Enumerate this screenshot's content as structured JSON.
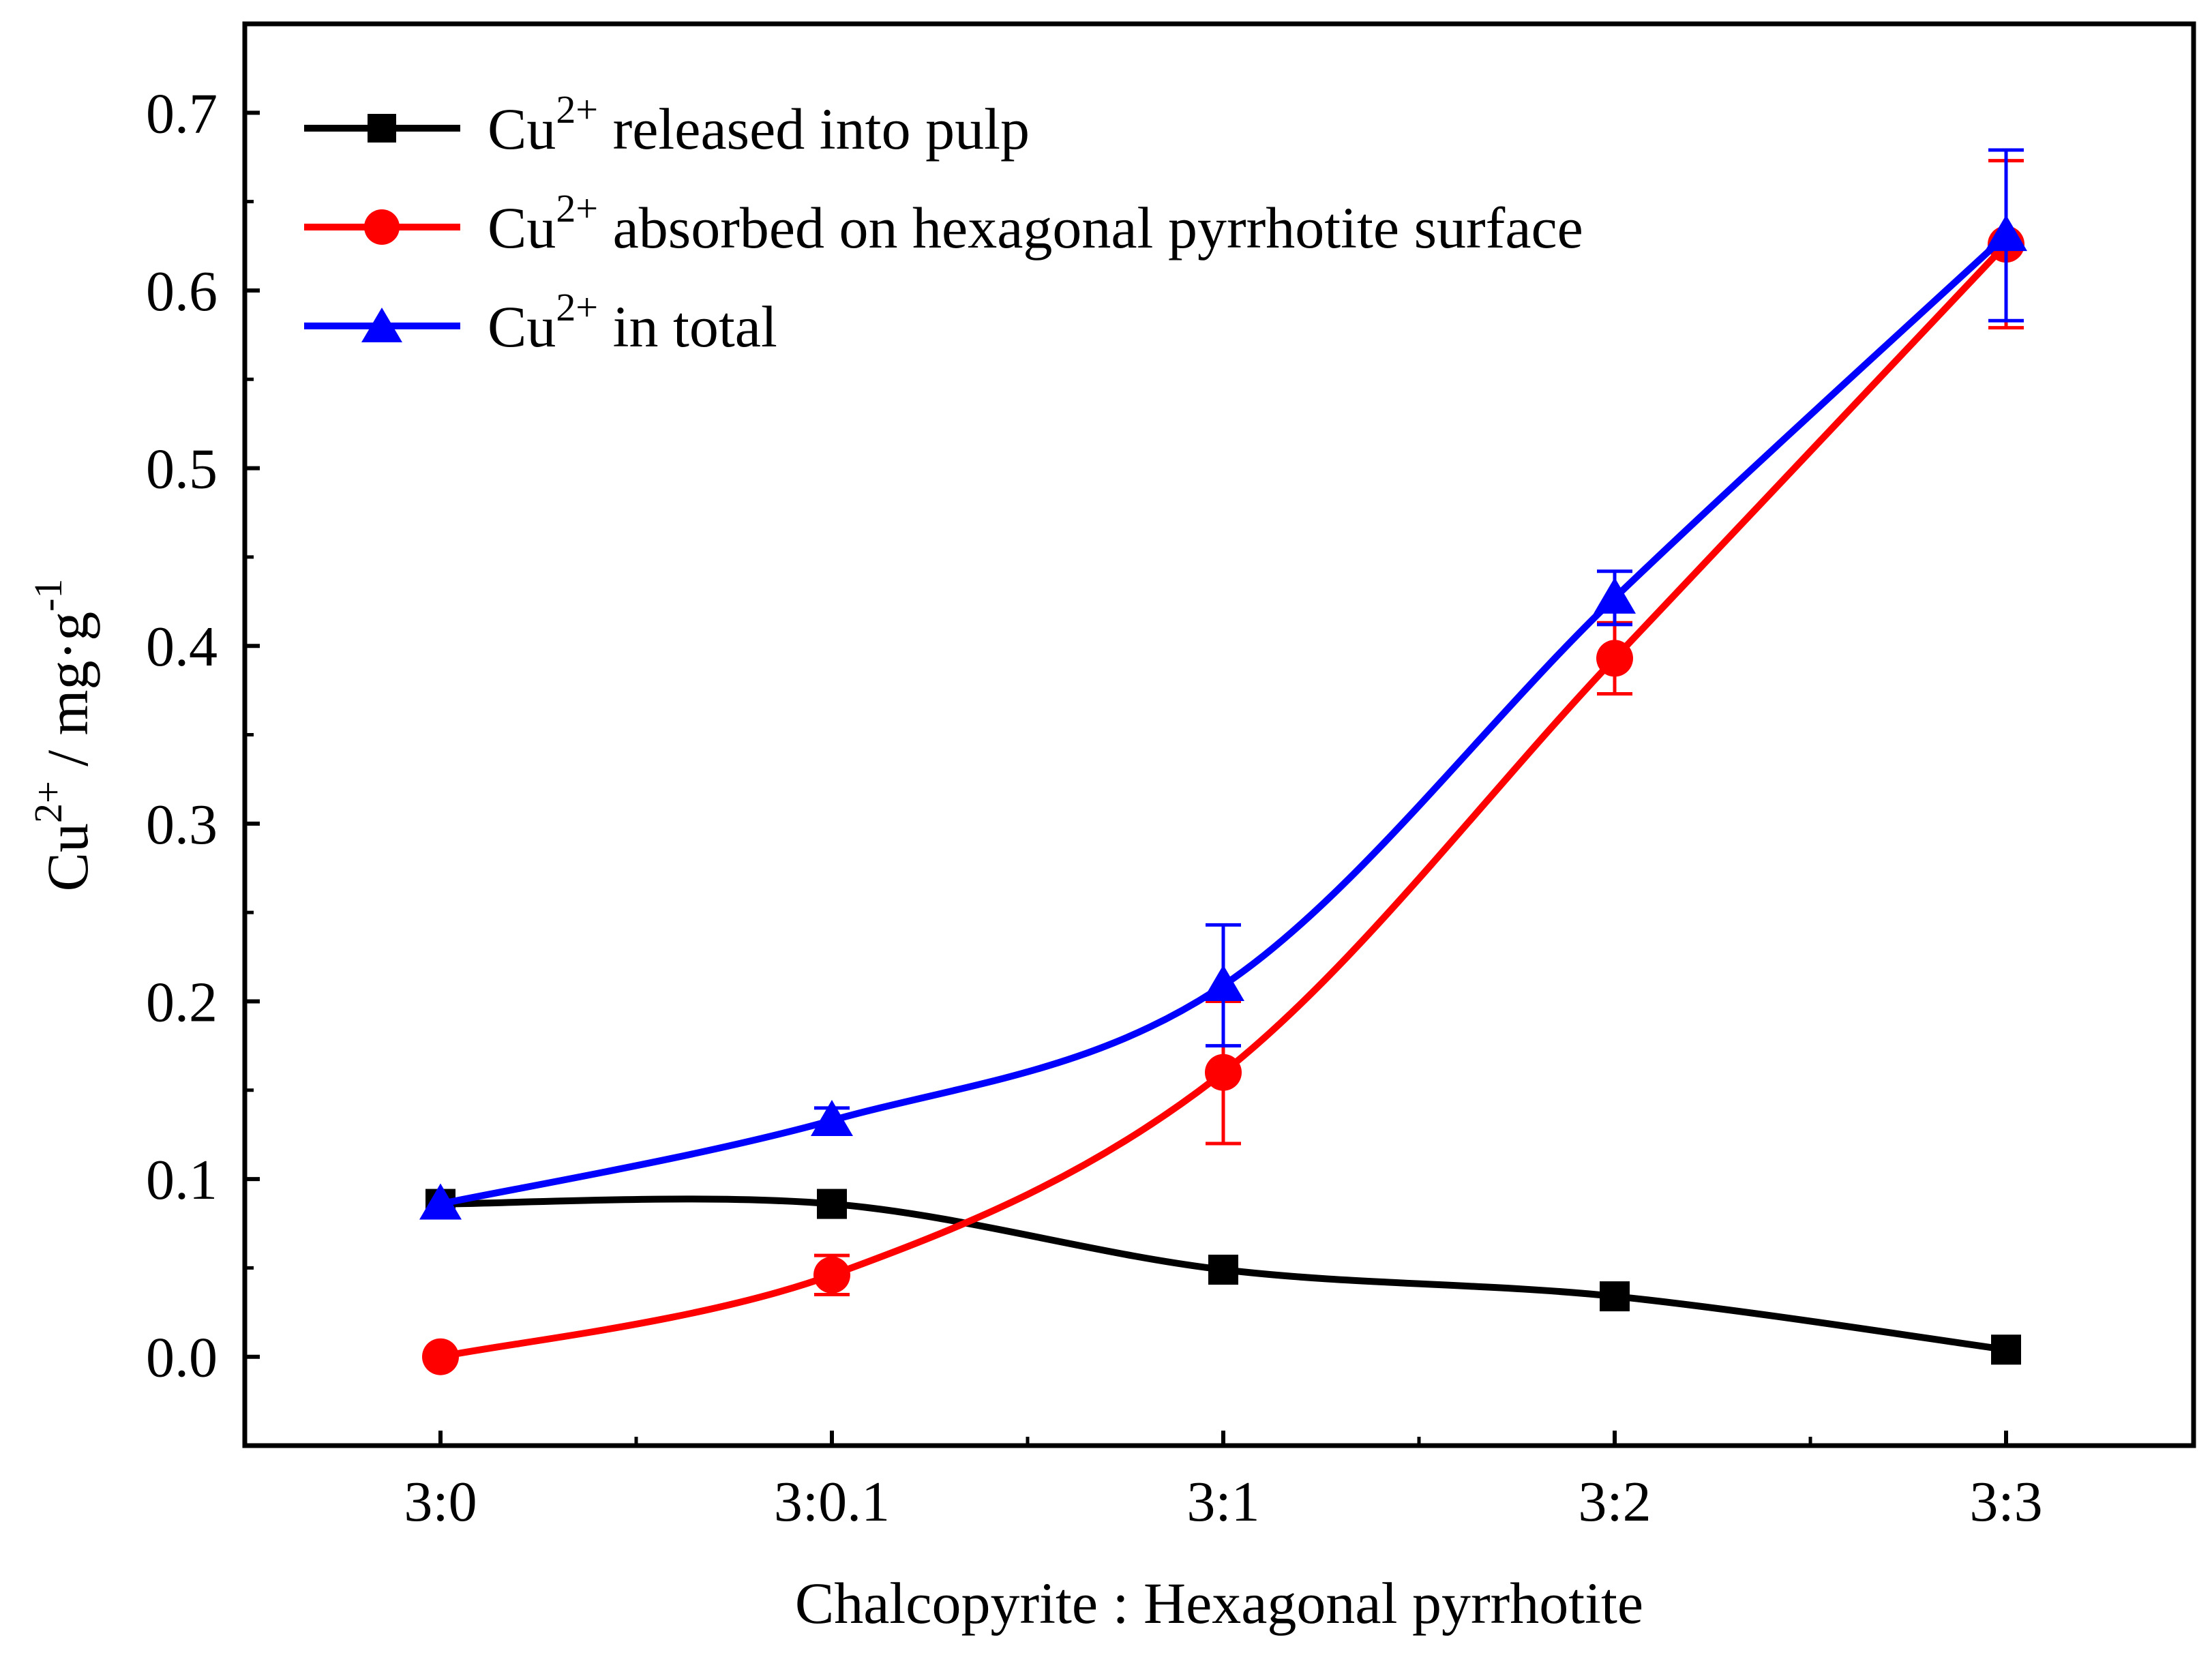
{
  "chart_data": {
    "type": "line",
    "title": "",
    "xlabel": "Chalcopyrite : Hexagonal pyrrhotite",
    "ylabel": {
      "base": "Cu",
      "sup": "2+",
      "unit": " / mg·g",
      "unit_sup": "-1"
    },
    "categories": [
      "3:0",
      "3:0.1",
      "3:1",
      "3:2",
      "3:3"
    ],
    "ylim": [
      -0.05,
      0.75
    ],
    "yticks": [
      "0.0",
      "0.1",
      "0.2",
      "0.3",
      "0.4",
      "0.5",
      "0.6",
      "0.7"
    ],
    "ytick_values": [
      0.0,
      0.1,
      0.2,
      0.3,
      0.4,
      0.5,
      0.6,
      0.7
    ],
    "legend_position": "top-left",
    "series": [
      {
        "name": "Cu2+ released into pulp",
        "label_base": "Cu",
        "label_sup": "2+",
        "label_rest": " released into pulp",
        "color": "#000000",
        "marker": "square",
        "values": [
          0.086,
          0.086,
          0.049,
          0.034,
          0.004
        ],
        "errors": [
          0,
          0,
          0,
          0,
          0
        ]
      },
      {
        "name": "Cu2+ absorbed on hexagonal pyrrhotite surface",
        "label_base": "Cu",
        "label_sup": "2+",
        "label_rest": " absorbed on hexagonal pyrrhotite surface",
        "color": "#ff0000",
        "marker": "circle",
        "values": [
          0.0,
          0.046,
          0.16,
          0.393,
          0.626
        ],
        "errors": [
          0,
          0.011,
          0.04,
          0.02,
          0.047
        ]
      },
      {
        "name": "Cu2+ in total",
        "label_base": "Cu",
        "label_sup": "2+",
        "label_rest": " in total",
        "color": "#0000ff",
        "marker": "triangle",
        "values": [
          0.086,
          0.133,
          0.209,
          0.427,
          0.631
        ],
        "errors": [
          0,
          0.007,
          0.034,
          0.015,
          0.048
        ]
      }
    ]
  }
}
